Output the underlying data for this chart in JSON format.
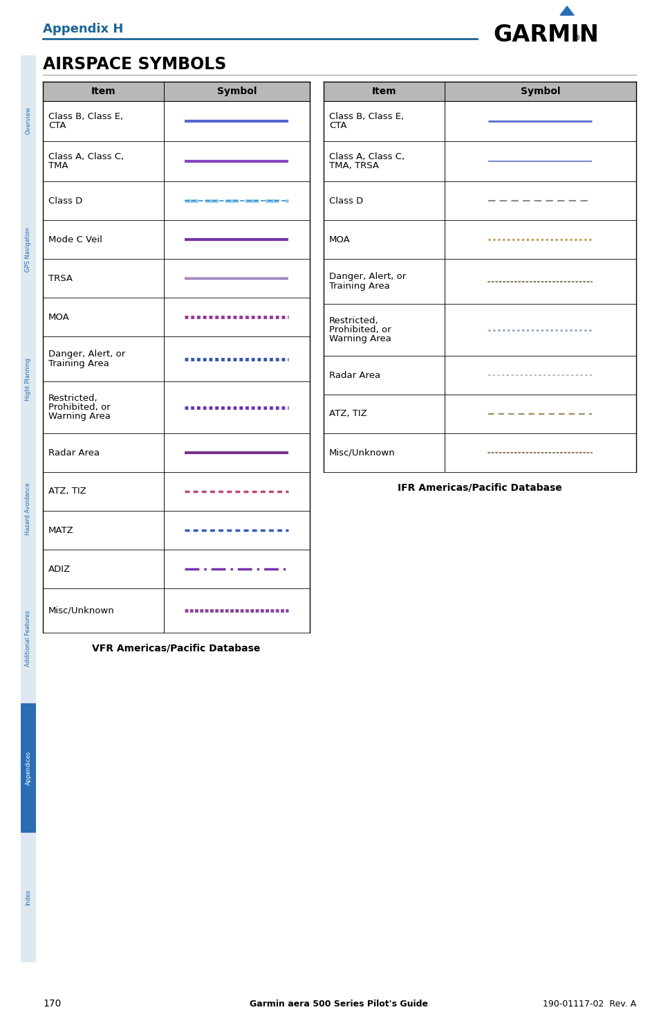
{
  "title": "AIRSPACE SYMBOLS",
  "appendix_label": "Appendix H",
  "garmin_text": "GARMIN",
  "page_number": "170",
  "footer_text": "Garmin aera 500 Series Pilot's Guide",
  "footer_right": "190-01117-02  Rev. A",
  "vfr_label": "VFR Americas/Pacific Database",
  "ifr_label": "IFR Americas/Pacific Database",
  "header_bg": "#b8b8b8",
  "garmin_blue": "#1a6496",
  "side_tabs": [
    {
      "label": "Overview",
      "color": "#dde8f0",
      "text_color": "#2a6db5"
    },
    {
      "label": "GPS Navigation",
      "color": "#dde8f0",
      "text_color": "#2a6db5"
    },
    {
      "label": "Hight Planning",
      "color": "#dde8f0",
      "text_color": "#2a6db5"
    },
    {
      "label": "Hazard Avoidance",
      "color": "#dde8f0",
      "text_color": "#2a6db5"
    },
    {
      "label": "Additional Features",
      "color": "#dde8f0",
      "text_color": "#2a6db5"
    },
    {
      "label": "Appendices",
      "color": "#2a6db5",
      "text_color": "#ffffff"
    },
    {
      "label": "Index",
      "color": "#dde8f0",
      "text_color": "#2a6db5"
    }
  ],
  "vfr_rows": [
    {
      "item": "Class B, Class E,\nCTA",
      "color": "#5566cc",
      "style": "solid",
      "lw": 3.0
    },
    {
      "item": "Class A, Class C,\nTMA",
      "color": "#8844bb",
      "style": "solid",
      "lw": 3.0
    },
    {
      "item": "Class D",
      "color": "#4488cc",
      "style": "classd_vfr",
      "lw": 2.5
    },
    {
      "item": "Mode C Veil",
      "color": "#7733aa",
      "style": "solid",
      "lw": 3.0
    },
    {
      "item": "TRSA",
      "color": "#9977bb",
      "style": "trsa",
      "lw": 2.5
    },
    {
      "item": "MOA",
      "color": "#993399",
      "style": "dense_sq",
      "lw": 3.5
    },
    {
      "item": "Danger, Alert, or\nTraining Area",
      "color": "#3355aa",
      "style": "dense_sq",
      "lw": 3.5
    },
    {
      "item": "Restricted,\nProhibited, or\nWarning Area",
      "color": "#6633bb",
      "style": "dense_sq",
      "lw": 3.5
    },
    {
      "item": "Radar Area",
      "color": "#773388",
      "style": "solid",
      "lw": 3.0
    },
    {
      "item": "ATZ, TIZ",
      "color": "#bb4477",
      "style": "dense_dot",
      "lw": 2.5
    },
    {
      "item": "MATZ",
      "color": "#3355bb",
      "style": "dense_dot",
      "lw": 2.5
    },
    {
      "item": "ADIZ",
      "color": "#7733aa",
      "style": "adiz",
      "lw": 2.5
    },
    {
      "item": "Misc/Unknown",
      "color": "#884499",
      "style": "dense_sq2",
      "lw": 3.5
    }
  ],
  "ifr_rows": [
    {
      "item": "Class B, Class E,\nCTA",
      "color": "#5566cc",
      "style": "solid",
      "lw": 2.0
    },
    {
      "item": "Class A, Class C,\nTMA, TRSA",
      "color": "#7788cc",
      "style": "solid",
      "lw": 1.5
    },
    {
      "item": "Class D",
      "color": "#888888",
      "style": "long_dash",
      "lw": 1.5
    },
    {
      "item": "MOA",
      "color": "#bb8833",
      "style": "tiny_sq",
      "lw": 2.0
    },
    {
      "item": "Danger, Alert, or\nTraining Area",
      "color": "#887755",
      "style": "tiny_dot",
      "lw": 1.5
    },
    {
      "item": "Restricted,\nProhibited, or\nWarning Area",
      "color": "#8899bb",
      "style": "tiny_sq",
      "lw": 2.0
    },
    {
      "item": "Radar Area",
      "color": "#aaaaaa",
      "style": "short_dash",
      "lw": 1.2
    },
    {
      "item": "ATZ, TIZ",
      "color": "#998855",
      "style": "med_dash",
      "lw": 1.5
    },
    {
      "item": "Misc/Unknown",
      "color": "#887755",
      "style": "tiny_dot",
      "lw": 1.5
    }
  ]
}
